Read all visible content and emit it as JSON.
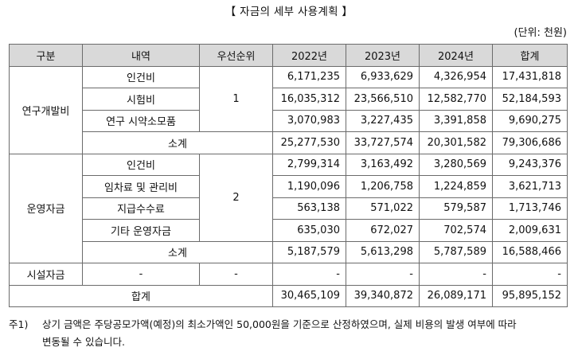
{
  "title": "【 자금의 세부 사용계획 】",
  "unit": "(단위: 천원)",
  "headers": [
    "구분",
    "내역",
    "우선순위",
    "2022년",
    "2023년",
    "2024년",
    "합계"
  ],
  "sections": [
    {
      "name": "연구개발비",
      "priority": "1",
      "rows": [
        {
          "item": "인건비",
          "y2022": "6,171,235",
          "y2023": "6,933,629",
          "y2024": "4,326,954",
          "total": "17,431,818"
        },
        {
          "item": "시험비",
          "y2022": "16,035,312",
          "y2023": "23,566,510",
          "y2024": "12,582,770",
          "total": "52,184,593"
        },
        {
          "item": "연구 시약소모품",
          "y2022": "3,070,983",
          "y2023": "3,227,435",
          "y2024": "3,391,858",
          "total": "9,690,275"
        }
      ],
      "subtotal": {
        "label": "소계",
        "y2022": "25,277,530",
        "y2023": "33,727,574",
        "y2024": "20,301,582",
        "total": "79,306,686"
      }
    },
    {
      "name": "운영자금",
      "priority": "2",
      "rows": [
        {
          "item": "인건비",
          "y2022": "2,799,314",
          "y2023": "3,163,492",
          "y2024": "3,280,569",
          "total": "9,243,376"
        },
        {
          "item": "임차료 및 관리비",
          "y2022": "1,190,096",
          "y2023": "1,206,758",
          "y2024": "1,224,859",
          "total": "3,621,713"
        },
        {
          "item": "지급수수료",
          "y2022": "563,138",
          "y2023": "571,022",
          "y2024": "579,587",
          "total": "1,713,746"
        },
        {
          "item": "기타 운영자금",
          "y2022": "635,030",
          "y2023": "672,027",
          "y2024": "702,574",
          "total": "2,009,631"
        }
      ],
      "subtotal": {
        "label": "소계",
        "y2022": "5,187,579",
        "y2023": "5,613,298",
        "y2024": "5,787,589",
        "total": "16,588,466"
      }
    }
  ],
  "facility": {
    "name": "시설자금",
    "item": "-",
    "priority": "-",
    "y2022": "-",
    "y2023": "-",
    "y2024": "-",
    "total": "-"
  },
  "grand_total": {
    "label": "합계",
    "y2022": "30,465,109",
    "y2023": "39,340,872",
    "y2024": "26,089,171",
    "total": "95,895,152"
  },
  "note": {
    "label": "주1)",
    "line1": "상기 금액은 주당공모가액(예정)의 최소가액인 50,000원을 기준으로 산정하였으며, 실제 비용의 발생 여부에 따라",
    "line2": "변동될 수 있습니다."
  }
}
